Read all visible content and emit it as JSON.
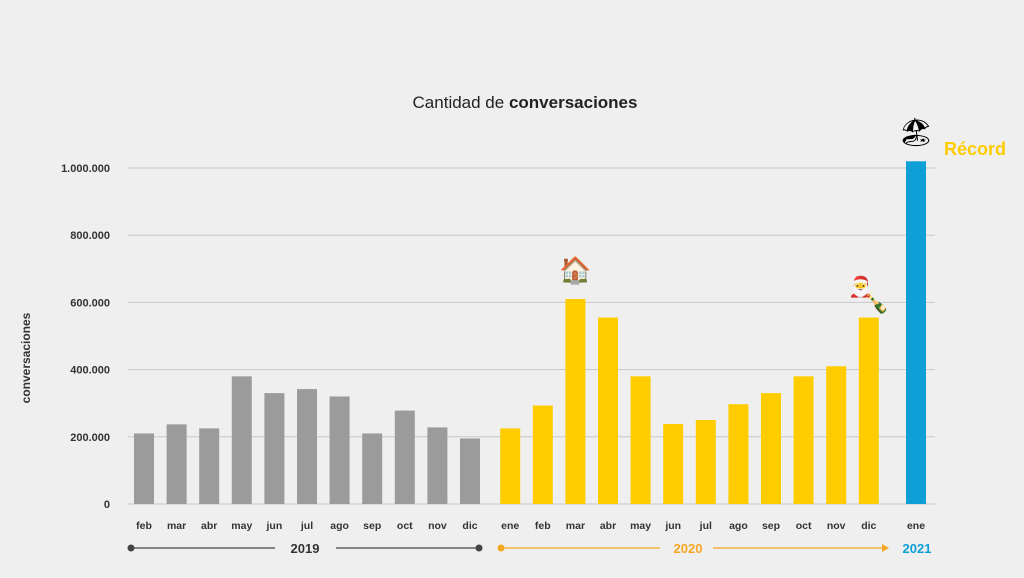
{
  "chart_data": {
    "type": "bar",
    "title_prefix": "Cantidad de",
    "title_bold": "conversaciones",
    "ylabel": "conversaciones",
    "xlabel": "",
    "ylim": [
      0,
      1000000
    ],
    "yticks": [
      0,
      200000,
      400000,
      600000,
      800000,
      1000000
    ],
    "ytick_labels": [
      "0",
      "200.000",
      "400.000",
      "600.000",
      "800.000",
      "1.000.000"
    ],
    "grid": true,
    "categories": [
      "feb",
      "mar",
      "abr",
      "may",
      "jun",
      "jul",
      "ago",
      "sep",
      "oct",
      "nov",
      "dic",
      "ene",
      "feb",
      "mar",
      "abr",
      "may",
      "jun",
      "jul",
      "ago",
      "sep",
      "oct",
      "nov",
      "dic",
      "ene"
    ],
    "values": [
      210000,
      237000,
      225000,
      380000,
      330000,
      342000,
      320000,
      210000,
      278000,
      228000,
      195000,
      225000,
      293000,
      610000,
      555000,
      380000,
      238000,
      250000,
      297000,
      330000,
      380000,
      410000,
      555000,
      1020000
    ],
    "year_of_bar": [
      0,
      0,
      0,
      0,
      0,
      0,
      0,
      0,
      0,
      0,
      0,
      1,
      1,
      1,
      1,
      1,
      1,
      1,
      1,
      1,
      1,
      1,
      1,
      2
    ],
    "groups": [
      {
        "year": "2019",
        "color": "#9b9b9b",
        "line_color": "#444444",
        "text_color": "#333333"
      },
      {
        "year": "2020",
        "color": "#ffcc00",
        "line_color": "#f5a623",
        "text_color": "#f5a623"
      },
      {
        "year": "2021",
        "color": "#0e9fd6",
        "line_color": "#0e9fd6",
        "text_color": "#0e9fd6"
      }
    ],
    "annotations": [
      {
        "bar_index": 13,
        "icon": "house-icon",
        "glyph": "🏠"
      },
      {
        "bar_index": 22,
        "icon": "santa-icon",
        "glyph": "🎅"
      },
      {
        "bar_index": 22,
        "icon": "champagne-icon",
        "glyph": "🍾"
      },
      {
        "bar_index": 23,
        "icon": "beach-icon",
        "glyph": "🏖"
      }
    ],
    "record_label": "Récord",
    "record_color": "#ffcc00"
  }
}
